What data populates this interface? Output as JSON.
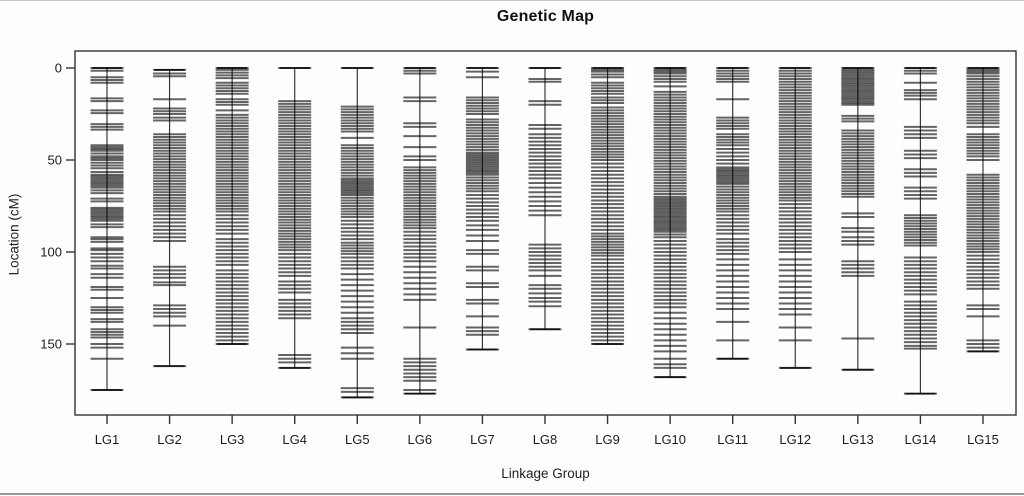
{
  "title": "Genetic Map",
  "colors": {
    "marker": "#000000",
    "axis": "#333333",
    "text": "#1c1c1c",
    "background": "#fdfdfd"
  },
  "chart_data": {
    "type": "linkage-map",
    "title": "Genetic Map",
    "xlabel": "Linkage Group",
    "ylabel": "Location (cM)",
    "legend": null,
    "grid": false,
    "y_axis": {
      "ticks": [
        0,
        50,
        100,
        150
      ],
      "unit": "cM",
      "inverted": true,
      "visible_range": [
        -9,
        189
      ]
    },
    "x_categories": [
      "LG1",
      "LG2",
      "LG3",
      "LG4",
      "LG5",
      "LG6",
      "LG7",
      "LG8",
      "LG9",
      "LG10",
      "LG11",
      "LG12",
      "LG13",
      "LG14",
      "LG15"
    ],
    "groups": [
      {
        "name": "LG1",
        "span_cM": [
          0,
          175
        ],
        "markers_cM": [
          0,
          1.5,
          5,
          6.5,
          8,
          16.5,
          18,
          23,
          24.5,
          30.5,
          32,
          33.5,
          42,
          43,
          44,
          45,
          46.5,
          48,
          49,
          50,
          51.5,
          53,
          54.5,
          56.5,
          58,
          59,
          60,
          61,
          62,
          63,
          64,
          65,
          66.5,
          68,
          71,
          72.5,
          76,
          77,
          78,
          79,
          80,
          81,
          82,
          83,
          85,
          86.5,
          92,
          93,
          94.5,
          98,
          99,
          101,
          103,
          105,
          107.5,
          109,
          112,
          114,
          119,
          120.5,
          125,
          130,
          131.5,
          133,
          136.5,
          138,
          142,
          143.5,
          145,
          146.5,
          150,
          152,
          158,
          175
        ]
      },
      {
        "name": "LG2",
        "span_cM": [
          1,
          162
        ],
        "markers_cM": [
          1,
          3,
          4.5,
          17,
          22,
          23.5,
          25,
          27,
          28.5,
          36,
          37.5,
          39,
          40.5,
          42,
          43.5,
          45,
          46.5,
          48,
          49.5,
          51,
          52.5,
          54,
          55.5,
          57,
          58.5,
          60,
          61.5,
          63,
          64.5,
          66,
          67.5,
          69,
          70.5,
          72,
          73.5,
          75,
          76.5,
          78,
          80,
          82,
          84,
          86,
          88,
          90,
          92,
          94,
          108,
          110,
          112,
          114,
          116.5,
          118,
          129,
          131,
          133,
          135,
          140,
          162
        ]
      },
      {
        "name": "LG3",
        "span_cM": [
          0,
          150
        ],
        "markers_cM": [
          0,
          1,
          2.5,
          4,
          5.5,
          8,
          9.5,
          11,
          12.5,
          14,
          17,
          18.5,
          20,
          23,
          25.5,
          27,
          28.5,
          30,
          31.5,
          33,
          34.5,
          36,
          37.5,
          39,
          40.5,
          42,
          43.5,
          45,
          46.5,
          48,
          49.5,
          51,
          52.5,
          54,
          55.5,
          57,
          58.5,
          60,
          61.5,
          63,
          64.5,
          66,
          67.5,
          69,
          70.5,
          72,
          73.5,
          75,
          76.5,
          78,
          80,
          82,
          84,
          86,
          88,
          90,
          93,
          95,
          97,
          99,
          101,
          103,
          105,
          107,
          110,
          112,
          114,
          116,
          118,
          120,
          122,
          124,
          126,
          128,
          130,
          132,
          134,
          136,
          138,
          140,
          142,
          144,
          146,
          148,
          150
        ]
      },
      {
        "name": "LG4",
        "span_cM": [
          0,
          163
        ],
        "markers_cM": [
          0,
          18,
          19.5,
          21,
          22.5,
          24,
          25.5,
          27,
          28.5,
          30,
          31.5,
          33,
          34.5,
          36,
          37.5,
          39,
          40.5,
          42,
          43.5,
          45,
          46.5,
          48,
          49.5,
          51,
          52.5,
          54,
          55.5,
          57,
          58.5,
          60,
          61.5,
          63,
          64.5,
          66,
          67.5,
          69,
          70.5,
          72,
          73.5,
          75,
          76.5,
          78,
          79.5,
          81,
          82.5,
          84,
          85.5,
          87,
          88.5,
          90,
          91.5,
          93,
          94.5,
          96,
          97.5,
          99,
          101,
          103,
          105,
          107,
          109,
          111,
          113,
          116,
          118,
          120,
          122,
          126,
          128,
          130,
          132,
          134,
          136,
          156,
          158,
          160,
          163
        ]
      },
      {
        "name": "LG5",
        "span_cM": [
          0,
          179
        ],
        "markers_cM": [
          0,
          21,
          22.5,
          24,
          25.5,
          27,
          28.5,
          30,
          31.5,
          33,
          34.5,
          38,
          42,
          43.5,
          45,
          46.5,
          48,
          49.5,
          51,
          52.5,
          54,
          55.5,
          57,
          58.5,
          60,
          61,
          62,
          63,
          64,
          65,
          66,
          67,
          68,
          69,
          70.5,
          72,
          73.5,
          75,
          76.5,
          78,
          79.5,
          81,
          83,
          85,
          87,
          89,
          91,
          93,
          95,
          96.5,
          98,
          99.5,
          101,
          103,
          105,
          107,
          109,
          112,
          115,
          118,
          121,
          124,
          127,
          130,
          133,
          136,
          138,
          140,
          142,
          144,
          152,
          155,
          158,
          174,
          176,
          179
        ]
      },
      {
        "name": "LG6",
        "span_cM": [
          0,
          177
        ],
        "markers_cM": [
          0,
          1.5,
          3,
          16,
          18,
          30,
          32,
          37,
          43,
          48,
          50,
          54,
          55.5,
          57,
          58.5,
          60,
          61.5,
          63,
          64.5,
          66,
          67.5,
          69,
          70.5,
          72,
          73.5,
          75,
          76.5,
          78,
          79.5,
          81,
          82.5,
          84,
          85.5,
          87,
          89,
          91,
          93,
          95,
          97,
          99,
          101,
          103,
          105,
          108,
          111,
          114,
          117,
          120,
          123,
          126,
          141,
          158,
          160,
          162,
          164,
          166,
          168,
          170,
          175,
          177
        ]
      },
      {
        "name": "LG7",
        "span_cM": [
          0,
          153
        ],
        "markers_cM": [
          0,
          2,
          5,
          16,
          17.5,
          19,
          20.5,
          22,
          23.5,
          25,
          28,
          29.5,
          31,
          32.5,
          34,
          35.5,
          37,
          38.5,
          40,
          41.5,
          43,
          44.5,
          46,
          47,
          48,
          49,
          50,
          51,
          52,
          53,
          54,
          55,
          56,
          57,
          58,
          59.5,
          61,
          62.5,
          64,
          65.5,
          67,
          69,
          71,
          73,
          75,
          77,
          79,
          81,
          83,
          85.5,
          88,
          91,
          94,
          99,
          101,
          108,
          110,
          117,
          119,
          126,
          128,
          135,
          141,
          143,
          145,
          153
        ]
      },
      {
        "name": "LG8",
        "span_cM": [
          0,
          142
        ],
        "markers_cM": [
          0,
          6,
          7.5,
          18,
          20,
          31,
          33,
          36,
          38,
          40,
          42,
          44,
          46,
          48,
          50,
          52,
          54,
          56,
          58,
          60,
          62.5,
          65,
          67.5,
          70,
          72.5,
          75,
          77.5,
          80,
          96,
          98,
          100,
          102,
          104,
          106,
          108,
          110,
          113,
          118,
          120,
          122.5,
          125,
          127,
          129.5,
          142
        ]
      },
      {
        "name": "LG9",
        "span_cM": [
          0,
          150
        ],
        "markers_cM": [
          0,
          1,
          2,
          3.5,
          5,
          8,
          9.5,
          11,
          12.5,
          14,
          16,
          17.5,
          19,
          21.5,
          23,
          24.5,
          26,
          27.5,
          29,
          30.5,
          32,
          33.5,
          35,
          36.5,
          38,
          39.5,
          41,
          42.5,
          44,
          45.5,
          47,
          48.5,
          50,
          52,
          54,
          56,
          58,
          60,
          62,
          64,
          66,
          68,
          70,
          72,
          74,
          76,
          78,
          80,
          82,
          84,
          86,
          88,
          90,
          91.5,
          93,
          94.5,
          96,
          97.5,
          99,
          100.5,
          102,
          104,
          106,
          108,
          110,
          112,
          114,
          116,
          118,
          120,
          122,
          124,
          126,
          128,
          130,
          132,
          134,
          136,
          138,
          140,
          142,
          144,
          146,
          148,
          150
        ]
      },
      {
        "name": "LG10",
        "span_cM": [
          0,
          168
        ],
        "markers_cM": [
          0,
          1,
          2,
          3,
          4.5,
          6,
          7.5,
          10,
          13,
          14.5,
          16,
          17.5,
          19,
          20.5,
          22,
          23.5,
          25,
          26.5,
          28,
          29.5,
          31,
          32.5,
          34,
          35.5,
          37,
          38.5,
          40,
          41.5,
          43,
          44.5,
          46,
          47.5,
          49,
          50.5,
          52,
          53.5,
          55,
          56.5,
          58,
          59.5,
          61,
          62.5,
          64,
          65.5,
          67,
          68.5,
          70,
          71,
          72,
          73,
          74,
          75,
          76,
          77,
          78,
          79,
          80,
          81,
          82,
          83,
          84,
          85,
          86,
          87,
          88,
          89,
          90.5,
          92,
          94,
          96,
          98,
          100,
          102,
          104,
          106,
          108,
          110,
          112,
          114,
          116,
          118,
          120,
          122,
          124,
          126,
          128,
          130,
          133,
          136,
          139,
          142,
          145,
          148,
          151,
          154,
          158,
          161,
          163,
          168
        ]
      },
      {
        "name": "LG11",
        "span_cM": [
          0,
          158
        ],
        "markers_cM": [
          0,
          1.5,
          3,
          4.5,
          6,
          7.5,
          17,
          27,
          28.5,
          30,
          31.5,
          33,
          36,
          37.5,
          39,
          40.5,
          42,
          44,
          46,
          48,
          50,
          52,
          54,
          55,
          56,
          57,
          58,
          59,
          60,
          61,
          62,
          63,
          64.5,
          66,
          67.5,
          69,
          70.5,
          72,
          73.5,
          75,
          76.5,
          78,
          80,
          82,
          84,
          86,
          88,
          90,
          93,
          95,
          97,
          99,
          101,
          104,
          107,
          110,
          113,
          116,
          119,
          122,
          125,
          128,
          131,
          138,
          148,
          158
        ]
      },
      {
        "name": "LG12",
        "span_cM": [
          0,
          163
        ],
        "markers_cM": [
          0,
          1.5,
          3,
          4.5,
          6,
          7.5,
          9,
          10.5,
          12,
          13.5,
          15,
          16.5,
          18,
          19.5,
          21,
          22.5,
          24,
          25.5,
          27,
          28.5,
          30,
          31.5,
          33,
          34.5,
          36,
          37.5,
          39,
          40.5,
          42,
          43.5,
          45,
          46.5,
          48,
          49.5,
          51,
          52.5,
          54,
          55.5,
          57,
          58.5,
          60,
          61.5,
          63,
          64.5,
          66,
          67.5,
          69,
          70.5,
          72,
          74,
          76,
          78,
          80,
          82,
          84,
          86,
          88,
          90,
          92,
          94,
          96,
          98,
          100,
          104,
          107,
          110,
          113,
          116,
          119,
          122,
          125,
          128,
          131,
          134,
          141,
          148,
          163
        ]
      },
      {
        "name": "LG13",
        "span_cM": [
          0,
          164
        ],
        "markers_cM": [
          0,
          1,
          2,
          3,
          4,
          5,
          6,
          7,
          8,
          9,
          10,
          11,
          12,
          13,
          14,
          15,
          16,
          17,
          18,
          19,
          20,
          26,
          27.5,
          29,
          34,
          35.5,
          37,
          38.5,
          40,
          41.5,
          43,
          44.5,
          46,
          47.5,
          49,
          50.5,
          52,
          53.5,
          55,
          56.5,
          58,
          59.5,
          61,
          62.5,
          64,
          65.5,
          67,
          68.5,
          70,
          79,
          81,
          87,
          89,
          92,
          94,
          96,
          105,
          107,
          109,
          111,
          113,
          147,
          164
        ]
      },
      {
        "name": "LG14",
        "span_cM": [
          0,
          177
        ],
        "markers_cM": [
          0,
          1.5,
          3,
          8,
          12,
          13.5,
          15,
          17,
          32,
          34,
          36,
          38,
          45,
          47,
          49,
          55,
          57,
          59,
          65,
          67,
          69,
          71,
          80,
          81.5,
          83,
          84.5,
          86,
          87.5,
          89,
          90.5,
          92,
          93.5,
          95,
          96.5,
          103,
          105,
          107,
          109,
          111,
          113,
          115,
          117,
          119,
          121,
          123,
          127,
          129,
          131,
          133,
          135,
          137,
          139,
          141,
          143,
          145,
          147,
          149,
          151,
          152.5,
          177
        ]
      },
      {
        "name": "LG15",
        "span_cM": [
          0,
          154
        ],
        "markers_cM": [
          0,
          1,
          2,
          3,
          4.5,
          6,
          7.5,
          9,
          10.5,
          12,
          13.5,
          15,
          16.5,
          18,
          19.5,
          21,
          22.5,
          24,
          25.5,
          27,
          28.5,
          30,
          32,
          36,
          37.5,
          39,
          40.5,
          42,
          43.5,
          45,
          46.5,
          48,
          50,
          58,
          59.5,
          61,
          62.5,
          64,
          65.5,
          67,
          68.5,
          70,
          71.5,
          73,
          74.5,
          76,
          77.5,
          79,
          80.5,
          82,
          83.5,
          85,
          86.5,
          88,
          89.5,
          91,
          92.5,
          94,
          95.5,
          97,
          98.5,
          100,
          102,
          104,
          106,
          108,
          110,
          112,
          114,
          116,
          118,
          120,
          129,
          131,
          135,
          148,
          150,
          152,
          154
        ]
      }
    ]
  }
}
